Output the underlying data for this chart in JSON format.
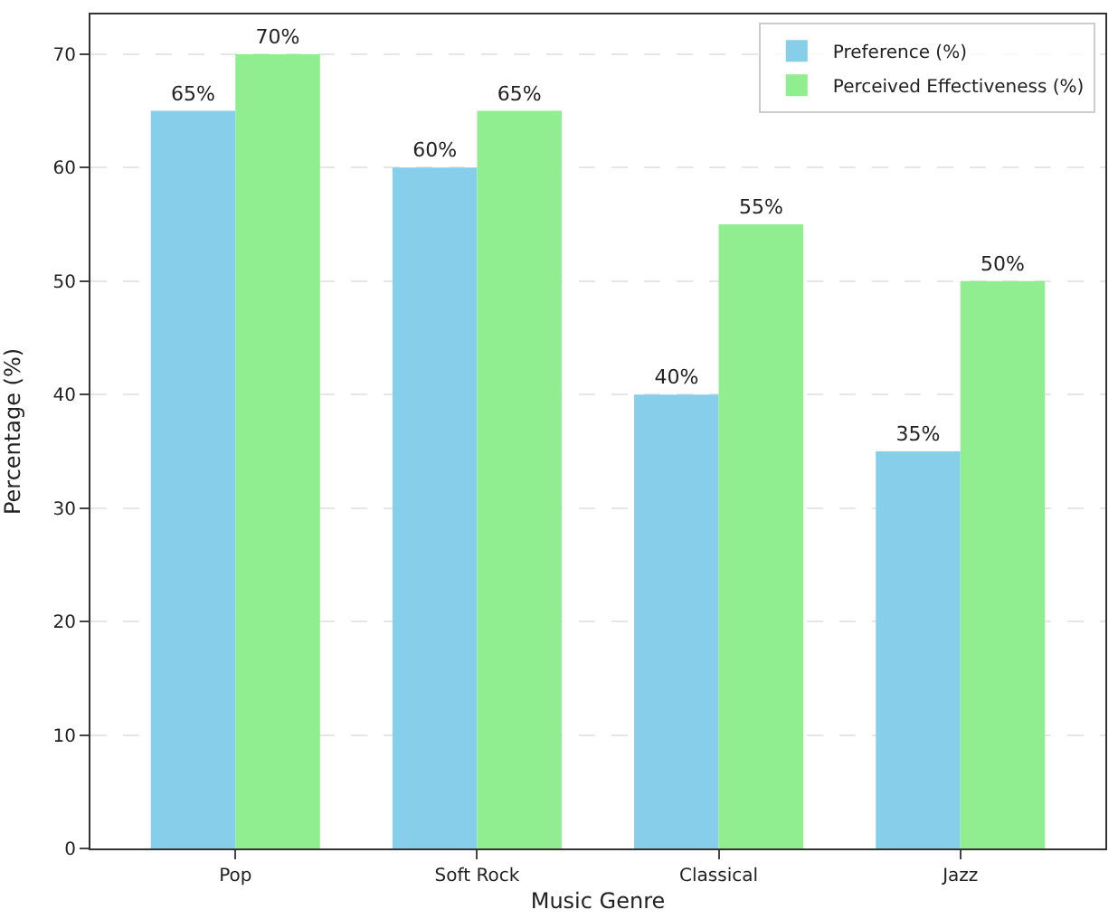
{
  "chart_data": {
    "type": "bar",
    "xlabel": "Music Genre",
    "ylabel": "Percentage (%)",
    "categories": [
      "Pop",
      "Soft Rock",
      "Classical",
      "Jazz"
    ],
    "series": [
      {
        "name": "Preference (%)",
        "color": "#87ceeb",
        "values": [
          65,
          60,
          40,
          35
        ],
        "value_labels": [
          "65%",
          "60%",
          "40%",
          "35%"
        ]
      },
      {
        "name": "Perceived Effectiveness (%)",
        "color": "#90ee90",
        "values": [
          70,
          65,
          55,
          50
        ],
        "value_labels": [
          "70%",
          "65%",
          "55%",
          "50%"
        ]
      }
    ],
    "ylim": [
      0,
      73.5
    ],
    "yticks": [
      0,
      10,
      20,
      30,
      40,
      50,
      60,
      70
    ],
    "grid": "y",
    "legend": "top right"
  }
}
